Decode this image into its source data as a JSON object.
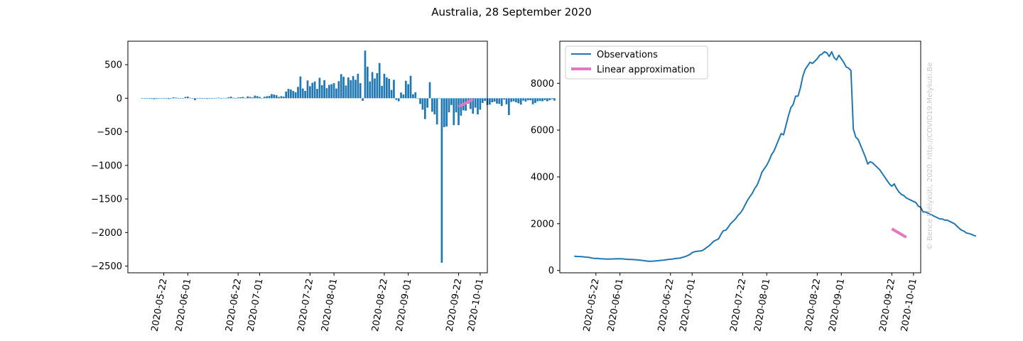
{
  "figure": {
    "suptitle": "Australia, 28 September 2020",
    "credit": "© Bence Mélykúti, 2020. http://COVID19.Melykuti.Be"
  },
  "colors": {
    "bar": "#1f77b4",
    "observations": "#1f77b4",
    "linear": "#e377c2",
    "credit": "#c8c8c8"
  },
  "chart_data": [
    {
      "type": "bar",
      "x_start": "2020-05-13",
      "x_end": "2020-09-28",
      "xticks": [
        "2020-05-22",
        "2020-06-01",
        "2020-06-22",
        "2020-07-01",
        "2020-07-22",
        "2020-08-01",
        "2020-08-22",
        "2020-09-01",
        "2020-09-22",
        "2020-10-01"
      ],
      "yticks": [
        500,
        0,
        -500,
        -1000,
        -1500,
        -2000,
        -2500
      ],
      "ytick_labels": [
        "500",
        "0",
        "−500",
        "−1000",
        "−1500",
        "−2000",
        "−2500"
      ],
      "ylim": [
        -2600,
        850
      ],
      "xlim": [
        "2020-05-07",
        "2020-10-04"
      ],
      "values": [
        -5,
        -6,
        -4,
        -8,
        -10,
        -14,
        -10,
        -3,
        -6,
        -6,
        -8,
        -12,
        -6,
        15,
        10,
        -5,
        -5,
        4,
        20,
        25,
        6,
        -3,
        -28,
        -4,
        4,
        -8,
        -6,
        -10,
        -6,
        -7,
        4,
        6,
        8,
        3,
        5,
        2,
        15,
        25,
        8,
        -4,
        12,
        15,
        20,
        6,
        28,
        20,
        12,
        40,
        32,
        20,
        -4,
        22,
        30,
        35,
        62,
        55,
        45,
        20,
        32,
        25,
        100,
        140,
        130,
        110,
        90,
        170,
        325,
        145,
        110,
        265,
        180,
        230,
        250,
        140,
        305,
        195,
        270,
        150,
        200,
        210,
        225,
        145,
        255,
        360,
        320,
        190,
        310,
        270,
        330,
        275,
        365,
        225,
        -38,
        710,
        470,
        250,
        390,
        295,
        375,
        525,
        185,
        365,
        310,
        290,
        125,
        275,
        -25,
        -45,
        85,
        55,
        260,
        210,
        335,
        60,
        90,
        -1,
        -85,
        -170,
        -310,
        -140,
        240,
        -200,
        -240,
        -390,
        -1,
        -2450,
        -430,
        -420,
        -210,
        -100,
        -400,
        -210,
        -400,
        -260,
        -180,
        -185,
        -80,
        -160,
        -230,
        -140,
        -240,
        -170,
        -70,
        -40,
        -100,
        -95,
        -60,
        -50,
        -80,
        -85,
        -115,
        -20,
        -90,
        -250,
        -55,
        -45,
        -60,
        -75,
        -95,
        -35,
        -50,
        -30,
        -30,
        -90,
        -70,
        -45,
        -40,
        -45,
        -28,
        -45,
        -30,
        -15,
        -35
      ],
      "linear_approximation": {
        "x": [
          "2020-09-22",
          "2020-09-28"
        ],
        "y": [
          -125,
          -18
        ]
      }
    },
    {
      "type": "line",
      "x_start": "2020-05-13",
      "x_end": "2020-09-28",
      "xticks": [
        "2020-05-22",
        "2020-06-01",
        "2020-06-22",
        "2020-07-01",
        "2020-07-22",
        "2020-08-01",
        "2020-08-22",
        "2020-09-01",
        "2020-09-22",
        "2020-10-01"
      ],
      "yticks": [
        0,
        2000,
        4000,
        6000,
        8000
      ],
      "ylim": [
        -100,
        9800
      ],
      "xlim": [
        "2020-05-07",
        "2020-10-04"
      ],
      "legend": {
        "position": "top-left",
        "entries": [
          "Observations",
          "Linear approximation"
        ]
      },
      "series": [
        {
          "name": "Observations",
          "values": [
            610,
            600,
            595,
            590,
            580,
            570,
            560,
            540,
            520,
            515,
            510,
            500,
            495,
            490,
            490,
            490,
            492,
            495,
            500,
            500,
            495,
            485,
            478,
            470,
            468,
            462,
            455,
            445,
            430,
            420,
            405,
            395,
            395,
            400,
            410,
            420,
            430,
            440,
            455,
            470,
            480,
            490,
            510,
            520,
            530,
            560,
            590,
            630,
            680,
            760,
            800,
            820,
            830,
            840,
            900,
            980,
            1050,
            1150,
            1250,
            1300,
            1350,
            1550,
            1700,
            1720,
            1850,
            2000,
            2100,
            2200,
            2350,
            2450,
            2600,
            2800,
            3000,
            3150,
            3300,
            3500,
            3650,
            3900,
            4200,
            4350,
            4500,
            4700,
            4950,
            5100,
            5350,
            5600,
            5850,
            5800,
            6200,
            6600,
            6950,
            7100,
            7450,
            7450,
            7800,
            8300,
            8600,
            8750,
            8900,
            8850,
            8950,
            9050,
            9200,
            9250,
            9350,
            9300,
            9150,
            9350,
            9100,
            9000,
            9200,
            9050,
            8900,
            8700,
            8650,
            8550,
            6050,
            5700,
            5600,
            5350,
            5100,
            4850,
            4550,
            4650,
            4600,
            4500,
            4400,
            4300,
            4150,
            4000,
            3850,
            3700,
            3600,
            3700,
            3500,
            3350,
            3250,
            3200,
            3100,
            3050,
            3000,
            2950,
            2900,
            2750,
            2700,
            2500,
            2500,
            2450,
            2400,
            2350,
            2300,
            2250,
            2200,
            2200,
            2150,
            2150,
            2100,
            2050,
            2000,
            1900,
            1800,
            1720,
            1680,
            1600,
            1580,
            1550,
            1500,
            1470
          ]
        },
        {
          "name": "Linear approximation",
          "x": [
            "2020-09-22",
            "2020-09-28"
          ],
          "values": [
            1780,
            1420
          ]
        }
      ]
    }
  ]
}
